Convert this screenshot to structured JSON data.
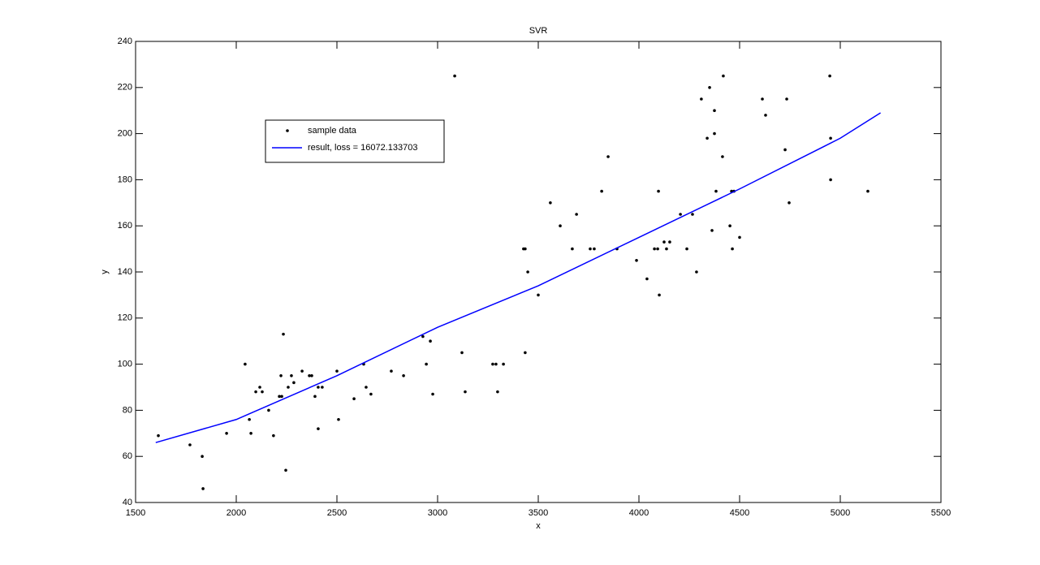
{
  "chart_data": {
    "type": "scatter",
    "title": "SVR",
    "xlabel": "x",
    "ylabel": "y",
    "xlim": [
      1500,
      5500
    ],
    "ylim": [
      40,
      240
    ],
    "xticks": [
      1500,
      2000,
      2500,
      3000,
      3500,
      4000,
      4500,
      5000,
      5500
    ],
    "yticks": [
      40,
      60,
      80,
      100,
      120,
      140,
      160,
      180,
      200,
      220,
      240
    ],
    "legend": "upper left",
    "series": [
      {
        "name": "sample data",
        "type": "scatter",
        "color": "#000000",
        "x": [
          1613,
          1770,
          1831,
          1835,
          1952,
          2044,
          2065,
          2073,
          2097,
          2117,
          2129,
          2161,
          2185,
          2214,
          2222,
          2234,
          2226,
          2246,
          2258,
          2274,
          2286,
          2327,
          2363,
          2375,
          2391,
          2407,
          2407,
          2427,
          2500,
          2508,
          2585,
          2633,
          2645,
          2669,
          2770,
          2831,
          2927,
          2944,
          2964,
          2976,
          3085,
          3121,
          3137,
          3274,
          3290,
          3298,
          3327,
          3427,
          3435,
          3435,
          3448,
          3500,
          3560,
          3609,
          3669,
          3690,
          3758,
          3778,
          3815,
          3847,
          3891,
          3988,
          4040,
          4077,
          4093,
          4097,
          4101,
          4125,
          4137,
          4153,
          4206,
          4238,
          4266,
          4286,
          4310,
          4339,
          4351,
          4363,
          4375,
          4375,
          4383,
          4415,
          4419,
          4452,
          4460,
          4464,
          4472,
          4500,
          4613,
          4629,
          4726,
          4734,
          4746,
          4948,
          4952,
          4952,
          5137
        ],
        "values": [
          69,
          65,
          60,
          46,
          70,
          100,
          76,
          70,
          88,
          90,
          88,
          80,
          69,
          86,
          95,
          113,
          86,
          54,
          90,
          95,
          92,
          97,
          95,
          95,
          86,
          72,
          90,
          90,
          97,
          76,
          85,
          100,
          90,
          87,
          97,
          95,
          112,
          100,
          110,
          87,
          225,
          105,
          88,
          100,
          100,
          88,
          100,
          150,
          150,
          105,
          140,
          130,
          170,
          160,
          150,
          165,
          150,
          150,
          175,
          190,
          150,
          145,
          137,
          150,
          150,
          175,
          130,
          153,
          150,
          153,
          165,
          150,
          165,
          140,
          215,
          198,
          220,
          158,
          200,
          210,
          175,
          190,
          225,
          160,
          175,
          150,
          175,
          155,
          215,
          208,
          193,
          215,
          170,
          225,
          198,
          180,
          175
        ]
      },
      {
        "name": "result, loss = 16072.133703",
        "type": "line",
        "color": "#0000ff",
        "x": [
          1600,
          2000,
          2500,
          3000,
          3500,
          4000,
          4500,
          5000,
          5200
        ],
        "values": [
          66,
          76,
          95,
          116,
          134,
          155,
          176,
          198,
          209
        ]
      }
    ]
  }
}
